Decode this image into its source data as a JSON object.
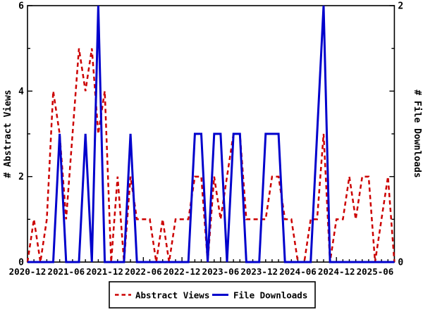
{
  "chart_data": {
    "type": "line",
    "title": "",
    "months": [
      "2020-12",
      "2021-01",
      "2021-02",
      "2021-03",
      "2021-04",
      "2021-05",
      "2021-06",
      "2021-07",
      "2021-08",
      "2021-09",
      "2021-10",
      "2021-11",
      "2021-12",
      "2022-01",
      "2022-02",
      "2022-03",
      "2022-04",
      "2022-05",
      "2022-06",
      "2022-07",
      "2022-08",
      "2022-09",
      "2022-10",
      "2022-11",
      "2022-12",
      "2023-01",
      "2023-02",
      "2023-03",
      "2023-04",
      "2023-05",
      "2023-06",
      "2023-07",
      "2023-08",
      "2023-09",
      "2023-10",
      "2023-11",
      "2023-12",
      "2024-01",
      "2024-02",
      "2024-03",
      "2024-04",
      "2024-05",
      "2024-06",
      "2024-07",
      "2024-08",
      "2024-09",
      "2024-10",
      "2024-11",
      "2024-12",
      "2025-01",
      "2025-02",
      "2025-03",
      "2025-04",
      "2025-05",
      "2025-06",
      "2025-07",
      "2025-08",
      "2025-09"
    ],
    "series": [
      {
        "name": "Abstract Views",
        "axis": "left",
        "color": "#cc0000",
        "style": "dashed",
        "values": [
          0,
          1,
          0,
          1,
          4,
          3,
          1,
          3,
          5,
          4,
          5,
          3,
          4,
          0,
          2,
          0,
          2,
          1,
          1,
          1,
          0,
          1,
          0,
          1,
          1,
          1,
          2,
          2,
          0,
          2,
          1,
          2,
          3,
          3,
          1,
          1,
          1,
          1,
          2,
          2,
          1,
          1,
          0,
          0,
          1,
          1,
          3,
          0,
          1,
          1,
          2,
          1,
          2,
          2,
          0,
          1,
          2,
          0
        ]
      },
      {
        "name": "File Downloads",
        "axis": "right",
        "color": "#0000cc",
        "style": "solid",
        "values": [
          0,
          0,
          0,
          0,
          0,
          1,
          0,
          0,
          0,
          1,
          0,
          2,
          0,
          0,
          0,
          0,
          1,
          0,
          0,
          0,
          0,
          0,
          0,
          0,
          0,
          0,
          1,
          1,
          0,
          1,
          1,
          0,
          1,
          1,
          0,
          0,
          0,
          1,
          1,
          1,
          0,
          0,
          0,
          0,
          0,
          1,
          2,
          0,
          0,
          0,
          0,
          0,
          0,
          0,
          0,
          0,
          0,
          0
        ]
      }
    ],
    "left_axis": {
      "label": "# Abstract Views",
      "min": 0,
      "max": 6,
      "labeled_ticks": [
        0,
        2,
        4,
        6
      ],
      "minor_ticks": [
        1,
        3,
        5
      ]
    },
    "right_axis": {
      "label": "# File Downloads",
      "min": 0,
      "max": 2,
      "labeled_ticks": [
        0,
        2
      ]
    },
    "x_axis": {
      "labeled_ticks": [
        "2020-12",
        "2021-06",
        "2021-12",
        "2022-06",
        "2022-12",
        "2023-06",
        "2023-12",
        "2024-06",
        "2024-12",
        "2025-06"
      ],
      "minor_tick_interval": "1 month",
      "label_every_n_months": 6
    },
    "legend": {
      "position": "bottom-center",
      "entries": [
        "Abstract Views",
        "File Downloads"
      ]
    },
    "grid": false,
    "frame_color": "#000000",
    "background": "#ffffff"
  }
}
